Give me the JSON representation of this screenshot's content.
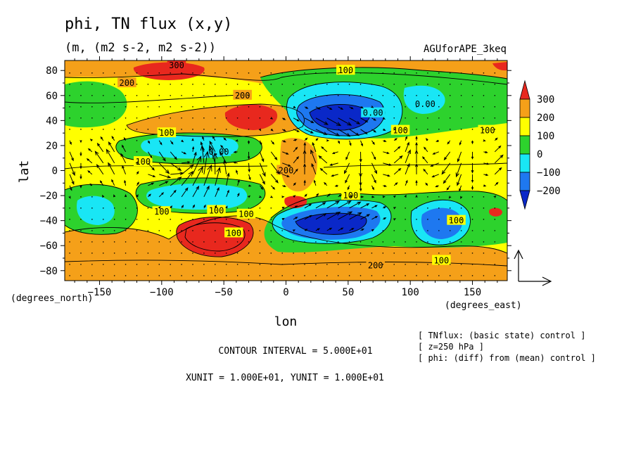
{
  "chart_data": {
    "type": "contour+vector",
    "title": "phi, TN flux (x,y)",
    "units": "(m, (m2 s-2, m2 s-2))",
    "run_id": "AGUforAPE_3keq",
    "xlabel": "lon",
    "x_unit_label": "(degrees_east)",
    "ylabel": "lat",
    "y_unit_label": "(degrees_north)",
    "xlim": [
      -178,
      178
    ],
    "ylim": [
      -88,
      88
    ],
    "x_ticks": [
      -150,
      -100,
      -50,
      0,
      50,
      100,
      150
    ],
    "y_ticks": [
      80,
      60,
      40,
      20,
      0,
      -20,
      -40,
      -60,
      -80
    ],
    "colorbar": {
      "labels": [
        "300",
        "200",
        "100",
        "0",
        "−100",
        "−200"
      ],
      "colors": [
        "#e8281e",
        "#f5a019",
        "#ffff00",
        "#2dd22d",
        "#19e6f5",
        "#1e78f0",
        "#0a28c8"
      ]
    },
    "contour_labels": [
      {
        "text": "300",
        "lon": -88,
        "lat": 84
      },
      {
        "text": "200",
        "lon": -128,
        "lat": 70
      },
      {
        "text": "100",
        "lon": 48,
        "lat": 80
      },
      {
        "text": "200",
        "lon": -35,
        "lat": 60
      },
      {
        "text": "0.00",
        "lon": 112,
        "lat": 53
      },
      {
        "text": "0.00",
        "lon": 70,
        "lat": 46
      },
      {
        "text": "100",
        "lon": -96,
        "lat": 30
      },
      {
        "text": "100",
        "lon": 162,
        "lat": 32
      },
      {
        "text": "100",
        "lon": 92,
        "lat": 32
      },
      {
        "text": "0.00",
        "lon": -54,
        "lat": 15
      },
      {
        "text": "100",
        "lon": -115,
        "lat": 7
      },
      {
        "text": "200",
        "lon": 0,
        "lat": 0
      },
      {
        "text": "100",
        "lon": 52,
        "lat": -20
      },
      {
        "text": "100",
        "lon": -100,
        "lat": -33
      },
      {
        "text": "100",
        "lon": -56,
        "lat": -32
      },
      {
        "text": "100",
        "lon": -32,
        "lat": -35
      },
      {
        "text": "100",
        "lon": -42,
        "lat": -50
      },
      {
        "text": "100",
        "lon": 137,
        "lat": -40
      },
      {
        "text": "200",
        "lon": 72,
        "lat": -76
      },
      {
        "text": "100",
        "lon": 125,
        "lat": -72
      }
    ],
    "reference_vector": {
      "x": 10,
      "y": 10
    }
  },
  "annotations": {
    "contour_interval": "CONTOUR INTERVAL = 5.000E+01",
    "vector_units": "XUNIT = 1.000E+01, YUNIT = 1.000E+01",
    "notes": [
      "[ TNflux: (basic state) control ]",
      "[ z=250 hPa ]",
      "[ phi: (diff) from (mean) control ]"
    ]
  }
}
